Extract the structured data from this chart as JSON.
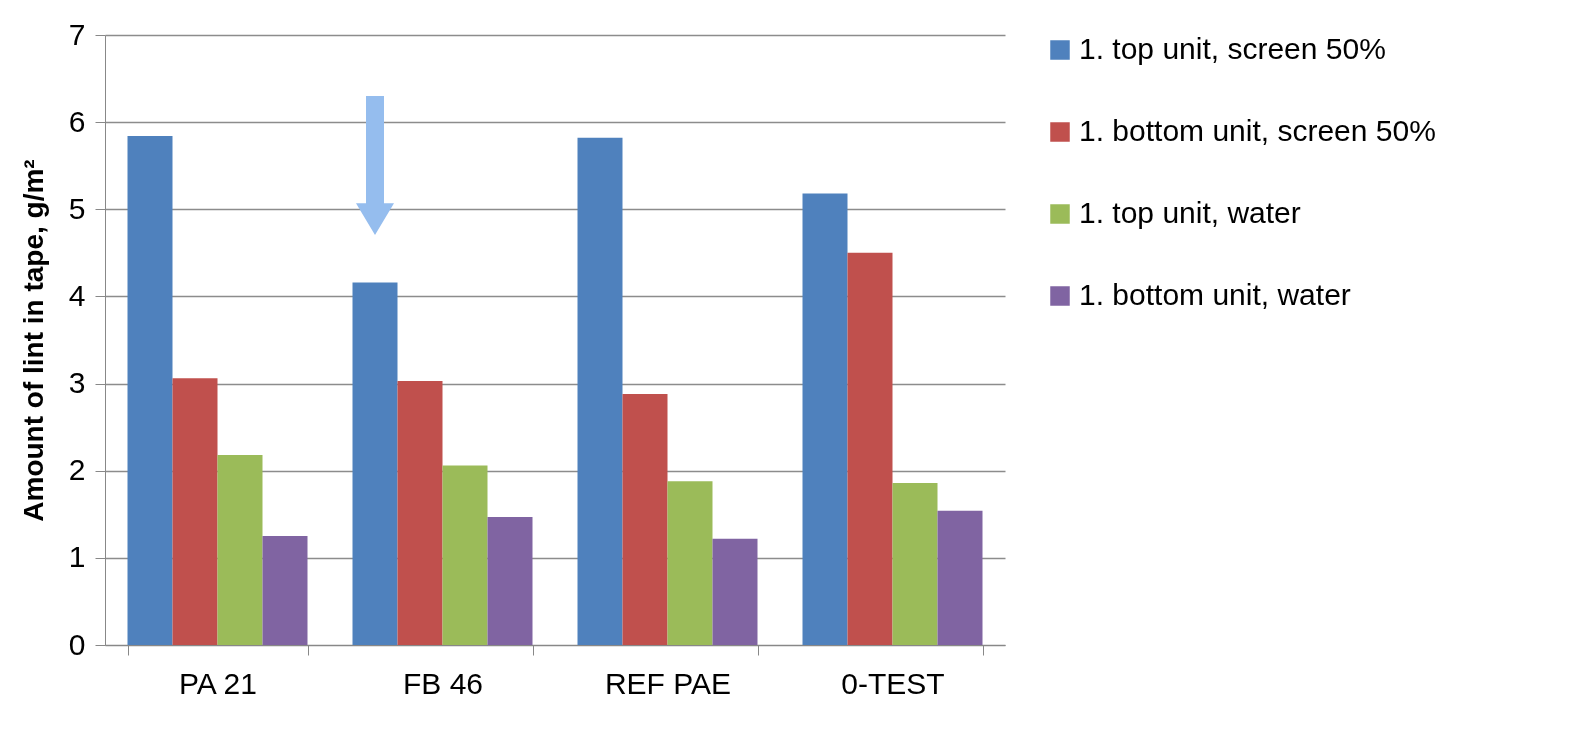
{
  "chart_data": {
    "type": "bar",
    "ylabel": "Amount of lint in tape, g/m²",
    "categories": [
      "PA 21",
      "FB 46",
      "REF PAE",
      "0-TEST"
    ],
    "series": [
      {
        "name": "1. top unit, screen 50%",
        "color": "#4f81bd",
        "values": [
          5.84,
          4.16,
          5.82,
          5.18
        ]
      },
      {
        "name": "1. bottom unit, screen 50%",
        "color": "#c0504d",
        "values": [
          3.06,
          3.03,
          2.88,
          4.5
        ]
      },
      {
        "name": "1. top unit, water",
        "color": "#9bbb59",
        "values": [
          2.18,
          2.06,
          1.88,
          1.86
        ]
      },
      {
        "name": "1. bottom unit, water",
        "color": "#8064a2",
        "values": [
          1.25,
          1.47,
          1.22,
          1.54
        ]
      }
    ],
    "ylim": [
      0,
      7
    ],
    "yticks": [
      0,
      1,
      2,
      3,
      4,
      5,
      6,
      7
    ],
    "grid": "y",
    "legend": "right"
  }
}
